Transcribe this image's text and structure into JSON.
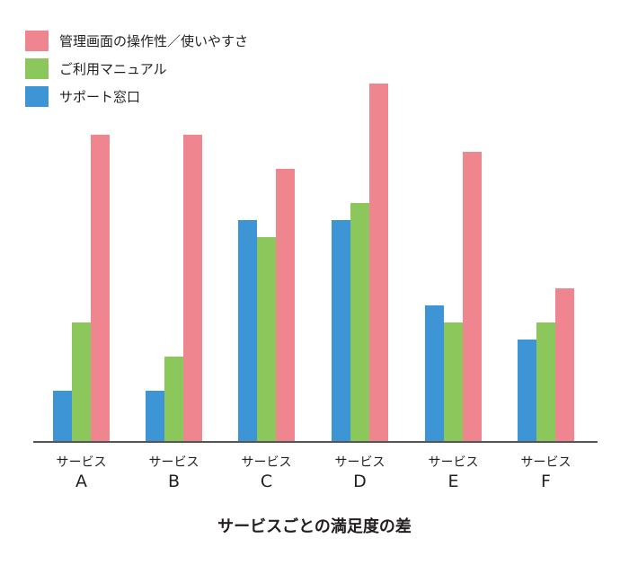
{
  "chart_data": {
    "type": "bar",
    "title": "サービスごとの満足度の差",
    "categories": [
      {
        "line1": "サービス",
        "line2": "A"
      },
      {
        "line1": "サービス",
        "line2": "B"
      },
      {
        "line1": "サービス",
        "line2": "C"
      },
      {
        "line1": "サービス",
        "line2": "D"
      },
      {
        "line1": "サービス",
        "line2": "E"
      },
      {
        "line1": "サービス",
        "line2": "F"
      }
    ],
    "series": [
      {
        "name": "サポート窓口",
        "color": "#3d95d6",
        "values": [
          3,
          3,
          13,
          13,
          8,
          6
        ]
      },
      {
        "name": "ご利用マニュアル",
        "color": "#8cc75c",
        "values": [
          7,
          5,
          12,
          14,
          7,
          7
        ]
      },
      {
        "name": "管理画面の操作性／使いやすさ",
        "color": "#ef858f",
        "values": [
          18,
          18,
          16,
          21,
          17,
          9
        ]
      }
    ],
    "legend_order": [
      2,
      1,
      0
    ],
    "ylim": [
      0,
      22
    ],
    "grid": false,
    "legend": "top-left",
    "axis_color": "#555555"
  }
}
